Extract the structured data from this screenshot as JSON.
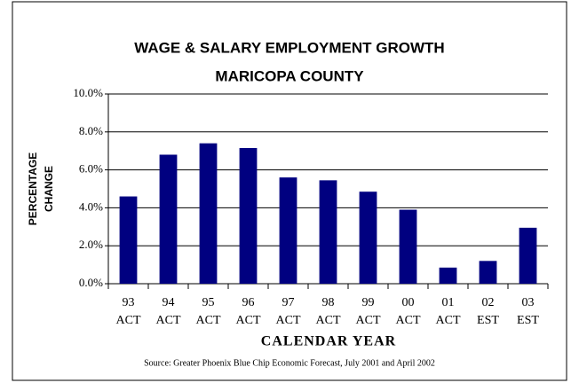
{
  "chart_data": {
    "type": "bar",
    "title": "WAGE & SALARY EMPLOYMENT GROWTH",
    "subtitle": "MARICOPA COUNTY",
    "y_label": [
      "PERCENTAGE",
      "CHANGE"
    ],
    "x_label": "CALENDAR YEAR",
    "source": "Source:  Greater Phoenix Blue Chip Economic Forecast, July 2001 and April 2002",
    "categories": [
      [
        "93",
        "ACT"
      ],
      [
        "94",
        "ACT"
      ],
      [
        "95",
        "ACT"
      ],
      [
        "96",
        "ACT"
      ],
      [
        "97",
        "ACT"
      ],
      [
        "98",
        "ACT"
      ],
      [
        "99",
        "ACT"
      ],
      [
        "00",
        "ACT"
      ],
      [
        "01",
        "ACT"
      ],
      [
        "02",
        "EST"
      ],
      [
        "03",
        "EST"
      ]
    ],
    "values": [
      4.6,
      6.8,
      7.4,
      7.15,
      5.6,
      5.45,
      4.85,
      3.9,
      0.85,
      1.2,
      2.95
    ],
    "color": "#000080",
    "ylim": [
      0,
      10
    ],
    "yticks": [
      {
        "value": 0,
        "label": "0.0%"
      },
      {
        "value": 2,
        "label": "2.0%"
      },
      {
        "value": 4,
        "label": "4.0%"
      },
      {
        "value": 6,
        "label": "6.0%"
      },
      {
        "value": 8,
        "label": "8.0%"
      },
      {
        "value": 10,
        "label": "10.0%"
      }
    ],
    "grid": true
  }
}
